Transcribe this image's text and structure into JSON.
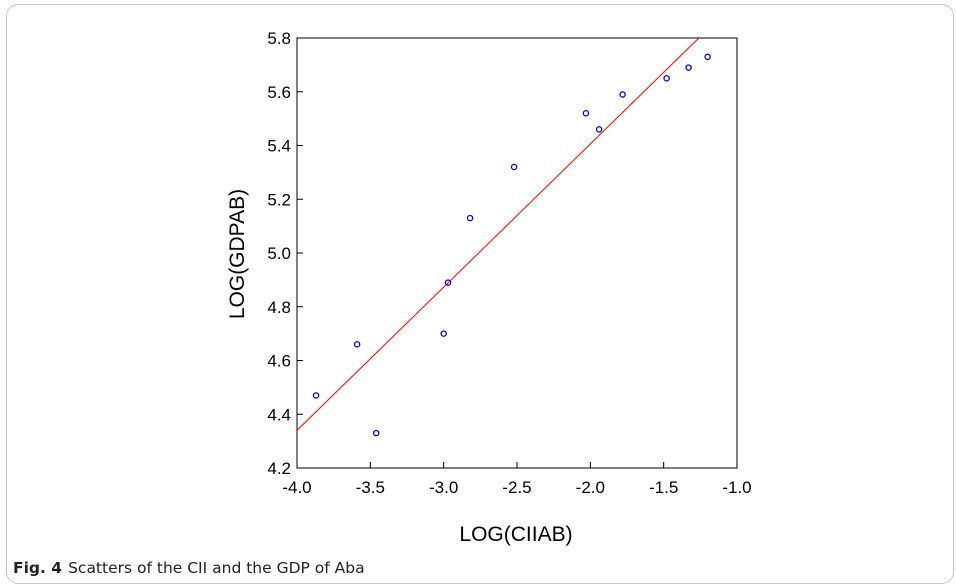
{
  "figure": {
    "label": "Fig. 4",
    "caption": "Scatters of the CII and the GDP of Aba"
  },
  "chart_data": {
    "type": "scatter",
    "title": "",
    "xlabel": "LOG(CIIAB)",
    "ylabel": "LOG(GDPAB)",
    "xlim": [
      -4.0,
      -1.0
    ],
    "ylim": [
      4.2,
      5.8
    ],
    "xticks": [
      "-4.0",
      "-3.5",
      "-3.0",
      "-2.5",
      "-2.0",
      "-1.5",
      "-1.0"
    ],
    "yticks": [
      "4.2",
      "4.4",
      "4.6",
      "4.8",
      "5.0",
      "5.2",
      "5.4",
      "5.6",
      "5.8"
    ],
    "grid": false,
    "legend": "none",
    "series": [
      {
        "color": "#0000cc",
        "points": [
          {
            "x": -3.87,
            "y": 4.47
          },
          {
            "x": -3.59,
            "y": 4.66
          },
          {
            "x": -3.46,
            "y": 4.33
          },
          {
            "x": -3.0,
            "y": 4.7
          },
          {
            "x": -2.97,
            "y": 4.89
          },
          {
            "x": -2.82,
            "y": 5.13
          },
          {
            "x": -2.52,
            "y": 5.32
          },
          {
            "x": -2.03,
            "y": 5.52
          },
          {
            "x": -1.94,
            "y": 5.46
          },
          {
            "x": -1.78,
            "y": 5.59
          },
          {
            "x": -1.48,
            "y": 5.65
          },
          {
            "x": -1.33,
            "y": 5.69
          },
          {
            "x": -1.2,
            "y": 5.73
          }
        ]
      }
    ],
    "fit_line": {
      "color": "#ff0000",
      "x": [
        -4.0,
        -1.26
      ],
      "y": [
        4.34,
        5.8
      ]
    }
  }
}
